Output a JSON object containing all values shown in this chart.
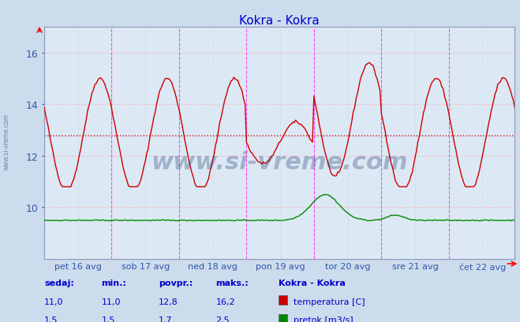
{
  "title": "Kokra - Kokra",
  "title_color": "#0000cc",
  "bg_color": "#ccdcec",
  "plot_bg_color": "#dce8f4",
  "grid_color_h": "#ffaaaa",
  "grid_color_v": "#bbccdd",
  "vline_color": "#ff44ff",
  "ylabel_color": "#3355aa",
  "xlabel_color": "#3355aa",
  "xlabels": [
    "pet 16 avg",
    "sob 17 avg",
    "ned 18 avg",
    "pon 19 avg",
    "tor 20 avg",
    "sre 21 avg",
    "čet 22 avg"
  ],
  "ylim": [
    8.0,
    17.0
  ],
  "yticks": [
    10,
    12,
    14,
    16
  ],
  "avg_line_y": 12.8,
  "avg_line_color": "#cc0000",
  "temp_color": "#cc0000",
  "flow_color": "#008800",
  "watermark_text": "www.si-vreme.com",
  "watermark_color": "#1a3a6a",
  "watermark_alpha": 0.3,
  "side_text": "www.si-vreme.com",
  "footer_labels": [
    "sedaj:",
    "min.:",
    "povpr.:",
    "maks.:"
  ],
  "footer_temp": [
    "11,0",
    "11,0",
    "12,8",
    "16,2"
  ],
  "footer_flow": [
    "1,5",
    "1,5",
    "1,7",
    "2,5"
  ],
  "footer_color": "#0000cc",
  "legend_title": "Kokra - Kokra",
  "legend_entries": [
    "temperatura [C]",
    "pretok [m3/s]"
  ],
  "legend_colors": [
    "#cc0000",
    "#008800"
  ],
  "n_points": 336,
  "days": 7
}
